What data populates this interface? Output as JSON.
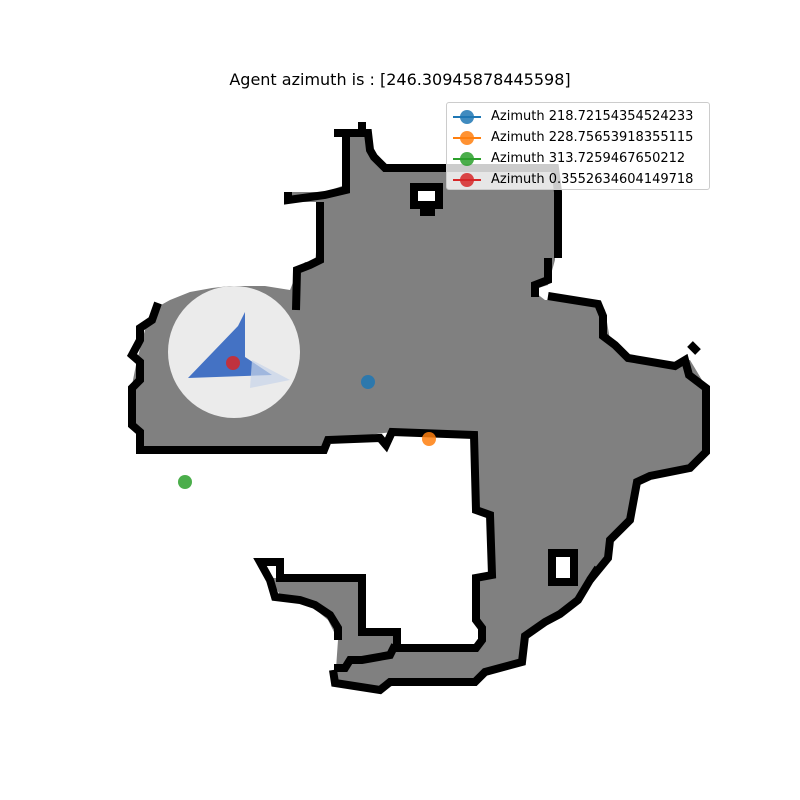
{
  "title": "Agent azimuth is : [246.30945878445598]",
  "colors": {
    "free_space": "#808080",
    "wall": "#000000",
    "background": "#ffffff",
    "fov_disc": "#ebebeb",
    "agent_arrow": "#4472c4"
  },
  "legend": {
    "placement": "upper right",
    "items": [
      {
        "label": "Azimuth 218.72154354524233",
        "color": "#1f77b4"
      },
      {
        "label": "Azimuth 228.75653918355115",
        "color": "#ff7f0e"
      },
      {
        "label": "Azimuth 313.7259467650212",
        "color": "#2ca02c"
      },
      {
        "label": "Azimuth 0.3552634604149718",
        "color": "#d62728"
      }
    ]
  },
  "agent": {
    "azimuth": 246.30945878445598,
    "icon": "triangle-arrow-icon"
  }
}
